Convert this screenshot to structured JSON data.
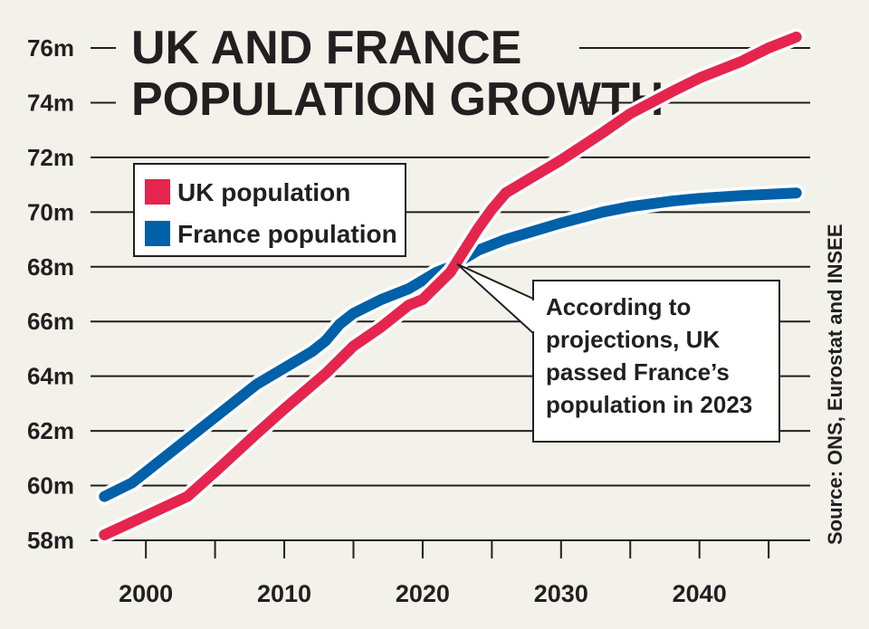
{
  "chart_data": {
    "type": "line",
    "title_lines": [
      "UK AND FRANCE",
      "POPULATION GROWTH"
    ],
    "source": "Source: ONS, Eurostat and INSEE",
    "annotation_lines": [
      "According to",
      "projections, UK",
      "passed France’s",
      "population in 2023"
    ],
    "annotation_point": {
      "x": 2022.5,
      "y": 68.1
    },
    "xlim": [
      1996,
      2048
    ],
    "ylim": [
      58,
      76
    ],
    "x_ticks": [
      2000,
      2010,
      2020,
      2030,
      2040
    ],
    "y_ticks": [
      58,
      60,
      62,
      64,
      66,
      68,
      70,
      72,
      74,
      76
    ],
    "y_tick_labels": [
      "58m",
      "60m",
      "62m",
      "64m",
      "66m",
      "68m",
      "70m",
      "72m",
      "74m",
      "76m"
    ],
    "grid": true,
    "legend_position": "top-left",
    "series": [
      {
        "name": "UK population",
        "color": "#e5254d",
        "points": [
          [
            1997,
            58.2
          ],
          [
            2000,
            58.9
          ],
          [
            2003,
            59.6
          ],
          [
            2005,
            60.5
          ],
          [
            2008,
            61.9
          ],
          [
            2010,
            62.8
          ],
          [
            2013,
            64.1
          ],
          [
            2015,
            65.1
          ],
          [
            2017,
            65.8
          ],
          [
            2019,
            66.6
          ],
          [
            2020,
            66.8
          ],
          [
            2021,
            67.3
          ],
          [
            2022,
            67.8
          ],
          [
            2023,
            68.6
          ],
          [
            2024,
            69.4
          ],
          [
            2025,
            70.1
          ],
          [
            2026,
            70.7
          ],
          [
            2027,
            71.0
          ],
          [
            2028,
            71.3
          ],
          [
            2030,
            71.9
          ],
          [
            2033,
            72.9
          ],
          [
            2035,
            73.6
          ],
          [
            2038,
            74.4
          ],
          [
            2040,
            74.9
          ],
          [
            2043,
            75.5
          ],
          [
            2045,
            76.0
          ],
          [
            2047,
            76.4
          ]
        ]
      },
      {
        "name": "France population",
        "color": "#0060a8",
        "points": [
          [
            1997,
            59.6
          ],
          [
            1999,
            60.1
          ],
          [
            2000,
            60.5
          ],
          [
            2002,
            61.3
          ],
          [
            2004,
            62.1
          ],
          [
            2006,
            62.9
          ],
          [
            2008,
            63.7
          ],
          [
            2010,
            64.3
          ],
          [
            2012,
            64.9
          ],
          [
            2013,
            65.3
          ],
          [
            2014,
            65.9
          ],
          [
            2015,
            66.3
          ],
          [
            2017,
            66.8
          ],
          [
            2019,
            67.2
          ],
          [
            2020,
            67.5
          ],
          [
            2021,
            67.8
          ],
          [
            2022,
            68.0
          ],
          [
            2023,
            68.3
          ],
          [
            2024,
            68.6
          ],
          [
            2026,
            69.0
          ],
          [
            2028,
            69.3
          ],
          [
            2030,
            69.6
          ],
          [
            2033,
            70.0
          ],
          [
            2035,
            70.2
          ],
          [
            2038,
            70.4
          ],
          [
            2040,
            70.5
          ],
          [
            2043,
            70.6
          ],
          [
            2047,
            70.7
          ]
        ]
      }
    ]
  }
}
